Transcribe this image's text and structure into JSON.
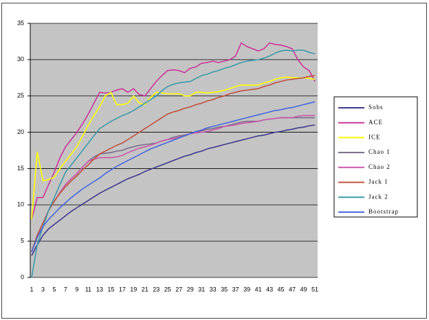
{
  "chart_data": {
    "type": "line",
    "categories": [
      1,
      null,
      3,
      null,
      5,
      null,
      7,
      null,
      9,
      null,
      11,
      null,
      13,
      null,
      15,
      null,
      17,
      null,
      19,
      null,
      21,
      null,
      23,
      null,
      25,
      null,
      27,
      null,
      29,
      null,
      31,
      null,
      33,
      null,
      35,
      null,
      37,
      null,
      39,
      null,
      41,
      null,
      43,
      null,
      45,
      null,
      47,
      null,
      49,
      null,
      51
    ],
    "ylim": [
      0,
      35
    ],
    "yticks": [
      0,
      5,
      10,
      15,
      20,
      25,
      30,
      35
    ],
    "grid": true,
    "legend": "right",
    "series": [
      {
        "name": "Sobs",
        "color": "#3c3a8c",
        "values": [
          3,
          4.5,
          5.8,
          6.7,
          7.3,
          7.9,
          8.5,
          9.1,
          9.6,
          10.1,
          10.6,
          11.1,
          11.6,
          12,
          12.4,
          12.8,
          13.2,
          13.6,
          13.9,
          14.2,
          14.6,
          14.9,
          15.2,
          15.5,
          15.8,
          16.1,
          16.4,
          16.7,
          16.9,
          17.2,
          17.4,
          17.7,
          17.9,
          18.1,
          18.3,
          18.5,
          18.7,
          18.9,
          19.1,
          19.3,
          19.5,
          19.6,
          19.8,
          20,
          20.1,
          20.3,
          20.4,
          20.6,
          20.7,
          20.9,
          21
        ]
      },
      {
        "name": "ACE",
        "color": "#cc3399",
        "values": [
          8,
          11,
          11,
          12.8,
          14.5,
          16.5,
          18,
          19,
          20,
          21.2,
          22.5,
          24,
          25.5,
          25.4,
          25.5,
          25.8,
          26,
          25.5,
          26,
          25.2,
          25,
          26,
          27,
          27.8,
          28.5,
          28.6,
          28.5,
          28.2,
          28.8,
          29,
          29.5,
          29.6,
          29.8,
          29.6,
          29.8,
          30,
          30.5,
          32.3,
          31.8,
          31.5,
          31.2,
          31.5,
          32.3,
          32.1,
          32,
          31.8,
          31.5,
          30,
          29,
          28.5,
          27
        ]
      },
      {
        "name": "ICE",
        "color": "#ffff00",
        "values": [
          8,
          17.3,
          13.3,
          13.5,
          13.8,
          15,
          16,
          17,
          18,
          19.5,
          21,
          22.3,
          23.5,
          25,
          25.5,
          23.8,
          23.8,
          24,
          25,
          24,
          23.8,
          24.8,
          25.5,
          25.4,
          25.3,
          25.3,
          25.3,
          25,
          25,
          25.5,
          25.5,
          25.4,
          25.5,
          25.6,
          25.8,
          26,
          26.3,
          26.5,
          26.5,
          26.5,
          26.5,
          26.8,
          27,
          27.3,
          27.5,
          27.6,
          27.5,
          27.5,
          27.5,
          27.4,
          27.3
        ]
      },
      {
        "name": "Chao 1",
        "color": "#7a6a8a",
        "values": [
          3.5,
          5.8,
          7.5,
          9.2,
          10.5,
          11.7,
          12.8,
          13.6,
          14.3,
          15.2,
          16,
          16.6,
          17,
          17.1,
          17.2,
          17.4,
          17.5,
          17.8,
          18,
          18.2,
          18.3,
          18.4,
          18.5,
          18.8,
          19,
          19.3,
          19.5,
          19.6,
          19.8,
          20,
          20.2,
          20.4,
          20.5,
          20.7,
          20.8,
          21,
          21.2,
          21.4,
          21.5,
          21.5,
          21.5,
          21.7,
          21.8,
          21.9,
          22,
          22,
          22,
          22,
          22,
          22,
          22
        ]
      },
      {
        "name": "Chao 2",
        "color": "#cc55aa",
        "values": [
          3.5,
          5.8,
          7.5,
          9.2,
          10.5,
          11.7,
          12.8,
          13.6,
          14.3,
          15.2,
          16,
          16.3,
          16.5,
          16.5,
          16.5,
          16.6,
          16.8,
          17.2,
          17.5,
          17.8,
          18,
          18.2,
          18.5,
          18.8,
          19,
          19.1,
          19.3,
          19.5,
          19.8,
          19.9,
          20,
          20.1,
          20.3,
          20.5,
          20.8,
          20.9,
          21,
          21.2,
          21.3,
          21.4,
          21.5,
          21.7,
          21.8,
          21.9,
          22,
          22,
          22,
          22.2,
          22.3,
          22.3,
          22.3
        ]
      },
      {
        "name": "Jack 1",
        "color": "#c0503c",
        "values": [
          3.5,
          5.8,
          7.5,
          9.2,
          10.5,
          11.6,
          12.5,
          13.3,
          14,
          14.8,
          15.5,
          16.3,
          17,
          17.4,
          17.8,
          18.2,
          18.5,
          19,
          19.5,
          20,
          20.5,
          21,
          21.5,
          22,
          22.5,
          22.8,
          23,
          23.3,
          23.5,
          23.8,
          24,
          24.3,
          24.5,
          24.8,
          25,
          25.3,
          25.5,
          25.7,
          25.8,
          25.9,
          26,
          26.3,
          26.5,
          26.8,
          27,
          27.2,
          27.3,
          27.4,
          27.5,
          27.7,
          27.8
        ]
      },
      {
        "name": "Jack 2",
        "color": "#3a9aaa",
        "values": [
          0,
          4.5,
          7,
          9.2,
          11,
          12.8,
          14.5,
          15.5,
          16.5,
          17.5,
          18.5,
          19.5,
          20.5,
          21,
          21.5,
          21.9,
          22.3,
          22.6,
          23,
          23.5,
          24,
          24.5,
          25,
          25.7,
          26.3,
          26.6,
          26.8,
          26.9,
          27,
          27.4,
          27.8,
          28,
          28.3,
          28.5,
          28.8,
          29,
          29.3,
          29.6,
          29.8,
          29.9,
          30,
          30.2,
          30.5,
          30.9,
          31.2,
          31.3,
          31.2,
          31.3,
          31.3,
          31,
          30.8
        ]
      },
      {
        "name": "Bootstrap",
        "color": "#4466dd",
        "values": [
          3.5,
          5.5,
          7,
          8,
          8.8,
          9.6,
          10.3,
          11,
          11.6,
          12.2,
          12.7,
          13.2,
          13.7,
          14.3,
          14.8,
          15.3,
          15.7,
          16.1,
          16.5,
          16.9,
          17.3,
          17.7,
          18,
          18.3,
          18.6,
          18.9,
          19.2,
          19.5,
          19.8,
          20.1,
          20.3,
          20.6,
          20.8,
          21,
          21.2,
          21.4,
          21.6,
          21.8,
          22,
          22.2,
          22.4,
          22.6,
          22.8,
          23,
          23.1,
          23.3,
          23.4,
          23.6,
          23.8,
          24,
          24.2
        ]
      }
    ]
  }
}
